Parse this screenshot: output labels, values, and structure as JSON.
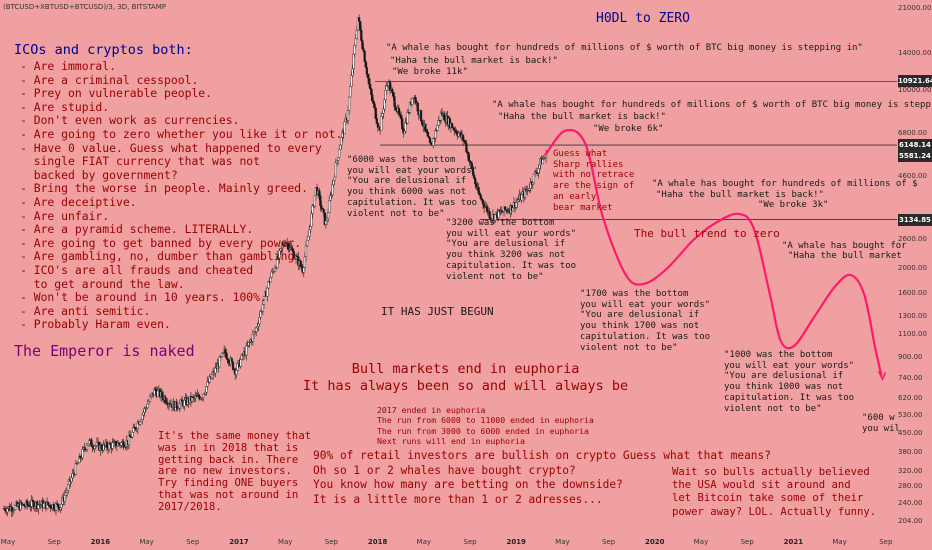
{
  "symbol": "(BTCUSD+XBTUSD+BTCUSD)/3, 3D, BITSTAMP",
  "title": "H0DL to ZERO",
  "chart_data": {
    "type": "candlestick",
    "yscale": "log",
    "ylim": [
      200,
      22000
    ],
    "y_ticks": [
      21000,
      14000,
      10000,
      6800,
      4600,
      3100,
      2600,
      2000,
      1600,
      1300,
      1100,
      900,
      740,
      620,
      530,
      450,
      380,
      320,
      280,
      240,
      204
    ],
    "x_ticks": [
      "May",
      "Sep",
      "2016",
      "May",
      "Sep",
      "2017",
      "May",
      "Sep",
      "2018",
      "May",
      "Sep",
      "2019",
      "May",
      "Sep",
      "2020",
      "May",
      "Sep",
      "2021",
      "May",
      "Sep"
    ],
    "price_tags": [
      "10921.64",
      "6148.14",
      "5581.24",
      "3134.85"
    ],
    "horizontal_levels": [
      10921.64,
      6148.14,
      3134.85
    ],
    "price_path": [
      {
        "t": 2015.33,
        "p": 230
      },
      {
        "t": 2015.55,
        "p": 240
      },
      {
        "t": 2015.75,
        "p": 235
      },
      {
        "t": 2015.85,
        "p": 320
      },
      {
        "t": 2015.95,
        "p": 420
      },
      {
        "t": 2016.05,
        "p": 400
      },
      {
        "t": 2016.25,
        "p": 420
      },
      {
        "t": 2016.45,
        "p": 670
      },
      {
        "t": 2016.6,
        "p": 580
      },
      {
        "t": 2016.8,
        "p": 640
      },
      {
        "t": 2016.97,
        "p": 950
      },
      {
        "t": 2017.05,
        "p": 800
      },
      {
        "t": 2017.2,
        "p": 1150
      },
      {
        "t": 2017.3,
        "p": 1800
      },
      {
        "t": 2017.42,
        "p": 2600
      },
      {
        "t": 2017.55,
        "p": 2000
      },
      {
        "t": 2017.65,
        "p": 4200
      },
      {
        "t": 2017.72,
        "p": 3000
      },
      {
        "t": 2017.82,
        "p": 6000
      },
      {
        "t": 2017.88,
        "p": 8000
      },
      {
        "t": 2017.96,
        "p": 19500
      },
      {
        "t": 2018.05,
        "p": 10000
      },
      {
        "t": 2018.12,
        "p": 7000
      },
      {
        "t": 2018.18,
        "p": 11000
      },
      {
        "t": 2018.3,
        "p": 7000
      },
      {
        "t": 2018.37,
        "p": 9800
      },
      {
        "t": 2018.5,
        "p": 6000
      },
      {
        "t": 2018.58,
        "p": 8200
      },
      {
        "t": 2018.75,
        "p": 6400
      },
      {
        "t": 2018.85,
        "p": 4000
      },
      {
        "t": 2018.95,
        "p": 3200
      },
      {
        "t": 2019.1,
        "p": 3500
      },
      {
        "t": 2019.22,
        "p": 4100
      },
      {
        "t": 2019.32,
        "p": 5300
      },
      {
        "t": 2019.36,
        "p": 5581
      }
    ],
    "projection": [
      {
        "t": 2019.35,
        "p": 5600
      },
      {
        "t": 2019.5,
        "p": 7000
      },
      {
        "t": 2019.65,
        "p": 6200
      },
      {
        "t": 2019.78,
        "p": 3200
      },
      {
        "t": 2019.95,
        "p": 1900
      },
      {
        "t": 2020.08,
        "p": 1750
      },
      {
        "t": 2020.25,
        "p": 2000
      },
      {
        "t": 2020.45,
        "p": 2600
      },
      {
        "t": 2020.6,
        "p": 3000
      },
      {
        "t": 2020.78,
        "p": 3300
      },
      {
        "t": 2020.9,
        "p": 2900
      },
      {
        "t": 2021.02,
        "p": 1600
      },
      {
        "t": 2021.1,
        "p": 1050
      },
      {
        "t": 2021.2,
        "p": 1000
      },
      {
        "t": 2021.35,
        "p": 1300
      },
      {
        "t": 2021.5,
        "p": 1700
      },
      {
        "t": 2021.62,
        "p": 1900
      },
      {
        "t": 2021.72,
        "p": 1600
      },
      {
        "t": 2021.8,
        "p": 1000
      },
      {
        "t": 2021.85,
        "p": 760
      }
    ]
  },
  "annotations": {
    "icos_header": "ICOs and cryptos both:",
    "icos_list": "- Are immoral.\n- Are a criminal cesspool.\n- Prey on vulnerable people.\n- Are stupid.\n- Don't even work as currencies.\n- Are going to zero whether you like it or not.\n- Have 0 value. Guess what happened to every\n  single FIAT currency that was not\n  backed by government?\n- Bring the worse in people. Mainly greed.\n- Are deceiptive.\n- Are unfair.\n- Are a pyramid scheme. LITERALLY.\n- Are going to get banned by every power.\n- Are gambling, no, dumber than gambling.\n- ICO's are all frauds and cheated\n  to get around the law.\n- Won't be around in 10 years. 100%.\n- Are anti semitic.\n- Probably Haram even.",
    "emperor": "The Emperor is naked",
    "whale1": "\"A whale has bought for hundreds of millions of $ worth of BTC big money is stepping in\"",
    "bull1": "\"Haha the bull market is back!\"",
    "broke1": "\"We broke 11k\"",
    "whale2": "\"A whale has bought for hundreds of millions of $ worth of BTC big money is stepp",
    "bull2": "\"Haha the bull market is back!\"",
    "broke2": "\"We broke 6k\"",
    "whale3": "\"A whale has bought for hundreds of millions of $",
    "bull3": "\"Haha the bull market is back!\"",
    "broke3": "\"We broke 3k\"",
    "whale4": "\"A whale has bought for",
    "bull4": "\"Haha the bull market",
    "bottom6000": "\"6000 was the bottom\nyou will eat your words\"\n\"You are delusional if\nyou think 6000 was not\ncapitulation. It was too\nviolent not to be\"",
    "bottom3200": "\"3200 was the bottom\nyou will eat your words\"\n\"You are delusional if\nyou think 3200 was not\ncapitulation. It was too\nviolent not to be\"",
    "bottom1700": "\"1700 was the bottom\nyou will eat your words\"\n\"You are delusional if\nyou think 1700 was not\ncapitulation. It was too\nviolent not to be\"",
    "bottom1000": "\"1000 was the bottom\nyou will eat your words\"\n\"You are delusional if\nyou think 1000 was not\ncapitulation. It was too\nviolent not to be\"",
    "bottom600": "\"600 w\nyou wil",
    "guess_what": "Guess what\nSharp rallies\nwith no retrace\nare the sign of\nan early\nbear market",
    "bull_trend": "The bull trend to zero",
    "just_begun": "IT HAS JUST BEGUN",
    "euphoria": "Bull markets end in euphoria\nIt has always been so and will always be",
    "euphoria_list": "2017 ended in euphoria\nThe run from 6000 to 11000 ended in euphoria\nThe run from 3000 to 6000 ended in euphoria\nNext runs will end in euphoria",
    "same_money": "It's the same money that\nwas in in 2018 that is\ngetting back in. There\nare no new investors.\nTry finding ONE buyers\nthat was not around in\n2017/2018.",
    "retail": "90% of retail investors are bullish on crypto Guess what that means?\nOh so 1 or 2 whales have bought crypto?\nYou know how many are betting on the downside?\nIt is a little more than 1 or 2 adresses...",
    "usa": "Wait so bulls actually believed\nthe USA would sit around and\nlet Bitcoin take some of their\npower away? LOL. Actually funny."
  },
  "colors": {
    "background": "#f0a0a0",
    "candle": "#1a1a1a",
    "projection": "#ff1a6c",
    "text_dark": "#1a1a1a",
    "text_red": "#9a0000",
    "text_blue": "#00008b",
    "text_purple": "#7a0074"
  }
}
